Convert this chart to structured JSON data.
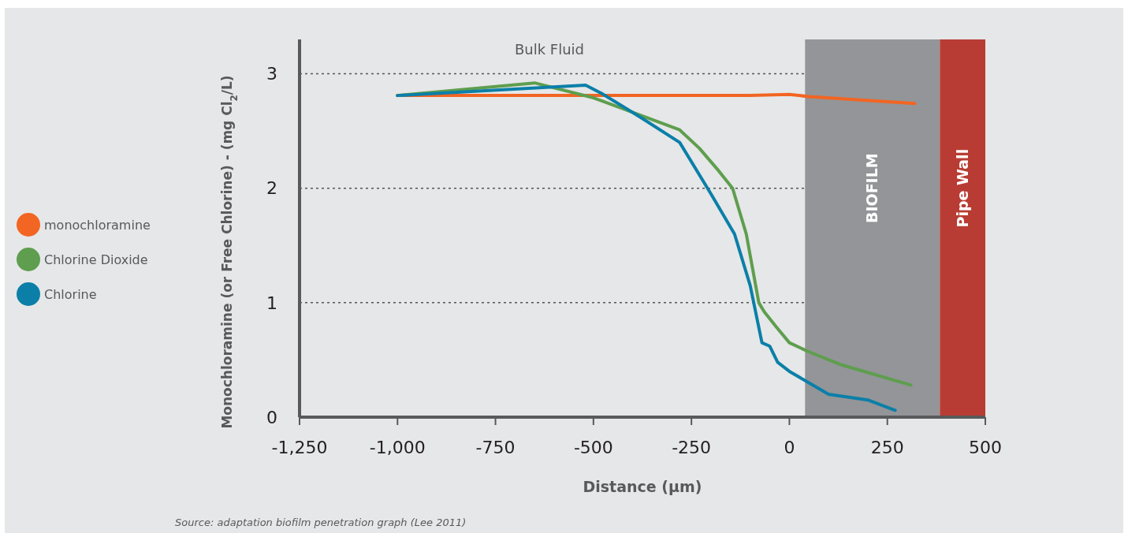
{
  "chart_data": {
    "type": "line",
    "xlabel": "Distance (µm)",
    "ylabel": "Monochloramine (or Free Chlorine) - (mg Cl$_{2}$/L)",
    "xlim": [
      -1250,
      500
    ],
    "xticks": [
      {
        "value": -1250,
        "label": "-1,250"
      },
      {
        "value": -1000,
        "label": "-1,000"
      },
      -750,
      -500,
      -250,
      0,
      250,
      500
    ],
    "ylim": [
      0,
      3.3
    ],
    "yticks": [
      0,
      1,
      2,
      3
    ],
    "grid": "y",
    "legend": "left",
    "line_style": "solid",
    "marker": "none",
    "bands": [
      {
        "axis": "x",
        "from": 40,
        "to": 384,
        "label": "BIOFILM",
        "color": "#939598"
      },
      {
        "axis": "x",
        "from": 384,
        "to": 500,
        "label": "Pipe Wall",
        "color": "#b83c33"
      }
    ],
    "annotations": [
      "Bulk Fluid",
      "Source: adaptation biofilm penetration graph (Lee 2011)"
    ],
    "series": [
      {
        "name": "monochloramine",
        "color": "#f26522",
        "x": [
          -1000,
          -500,
          -100,
          0,
          50,
          320
        ],
        "values": [
          2.81,
          2.81,
          2.81,
          2.82,
          2.8,
          2.74
        ]
      },
      {
        "name": "Chlorine Dioxide",
        "color": "#5e9e4e",
        "x": [
          -1000,
          -650,
          -500,
          -280,
          -230,
          -180,
          -145,
          -110,
          -78,
          -64,
          -34,
          0,
          50,
          130,
          310
        ],
        "values": [
          2.81,
          2.92,
          2.79,
          2.51,
          2.35,
          2.15,
          2.0,
          1.6,
          1.0,
          0.92,
          0.79,
          0.65,
          0.57,
          0.46,
          0.28
        ]
      },
      {
        "name": "Chlorine",
        "color": "#0b7fa8",
        "x": [
          -1000,
          -520,
          -480,
          -380,
          -280,
          -200,
          -140,
          -100,
          -70,
          -50,
          -30,
          0,
          50,
          100,
          200,
          270
        ],
        "values": [
          2.81,
          2.9,
          2.83,
          2.62,
          2.4,
          1.95,
          1.6,
          1.15,
          0.65,
          0.62,
          0.48,
          0.4,
          0.3,
          0.2,
          0.15,
          0.06
        ]
      }
    ]
  }
}
